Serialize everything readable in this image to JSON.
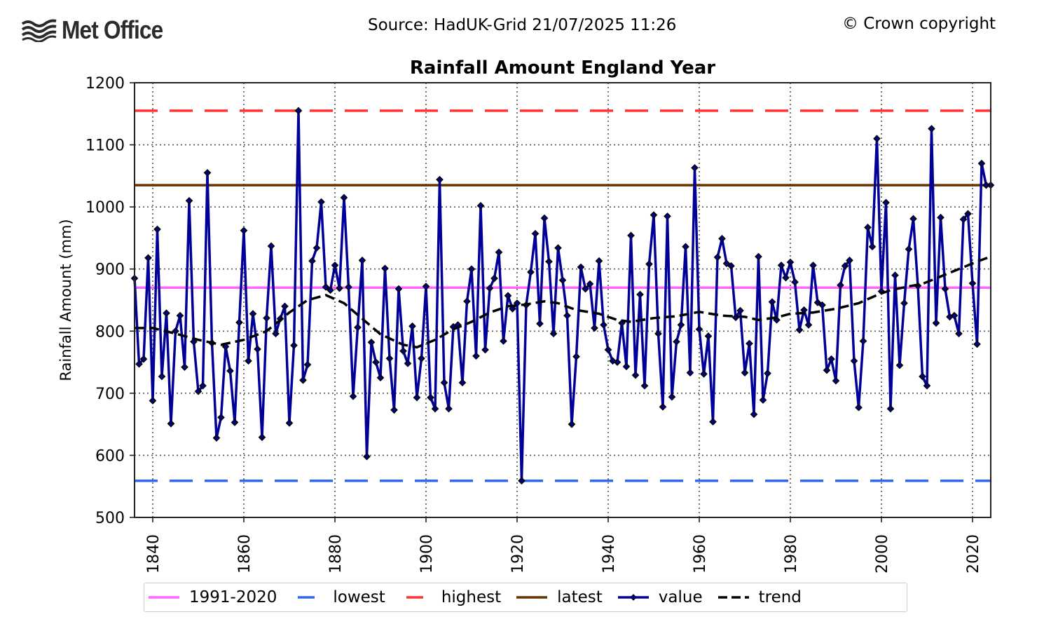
{
  "header": {
    "logo_text": "Met Office",
    "source": "Source: HadUK-Grid 21/07/2025 11:26",
    "copyright": "© Crown copyright"
  },
  "colors": {
    "baseline": "#ff66ff",
    "lowest": "#3366ee",
    "highest": "#ff3333",
    "latest": "#663300",
    "value": "#000099",
    "trend": "#000000",
    "grid": "#555555"
  },
  "chart_data": {
    "type": "line",
    "title": "Rainfall Amount England Year",
    "xlabel": "",
    "ylabel": "Rainfall Amount (mm)",
    "xlim": [
      1836,
      2024
    ],
    "ylim": [
      500,
      1200
    ],
    "x_ticks": [
      1840,
      1860,
      1880,
      1900,
      1920,
      1940,
      1960,
      1980,
      2000,
      2020
    ],
    "y_ticks": [
      500,
      600,
      700,
      800,
      900,
      1000,
      1100,
      1200
    ],
    "grid": true,
    "legend_position": "bottom",
    "reference_lines": [
      {
        "name": "1991-2020",
        "value": 870,
        "style": "solid"
      },
      {
        "name": "lowest",
        "value": 559,
        "style": "dashed"
      },
      {
        "name": "highest",
        "value": 1155,
        "style": "dashed"
      },
      {
        "name": "latest",
        "value": 1035,
        "style": "solid"
      }
    ],
    "series": [
      {
        "name": "value",
        "start_year": 1836,
        "values": [
          885,
          747,
          755,
          918,
          688,
          964,
          727,
          829,
          651,
          800,
          825,
          742,
          1010,
          783,
          703,
          712,
          1055,
          781,
          628,
          661,
          775,
          736,
          653,
          814,
          962,
          752,
          828,
          771,
          629,
          821,
          937,
          796,
          820,
          840,
          652,
          777,
          1155,
          721,
          746,
          913,
          934,
          1008,
          871,
          866,
          906,
          869,
          1015,
          871,
          695,
          806,
          914,
          598,
          782,
          750,
          725,
          901,
          756,
          673,
          868,
          768,
          748,
          808,
          693,
          756,
          872,
          693,
          675,
          1044,
          717,
          675,
          807,
          810,
          717,
          848,
          900,
          760,
          1002,
          770,
          869,
          885,
          927,
          784,
          857,
          836,
          845,
          559,
          842,
          895,
          957,
          812,
          982,
          912,
          796,
          934,
          882,
          825,
          650,
          759,
          903,
          868,
          876,
          805,
          913,
          810,
          770,
          752,
          750,
          813,
          743,
          954,
          729,
          859,
          712,
          908,
          987,
          796,
          678,
          985,
          694,
          783,
          810,
          936,
          733,
          1063,
          803,
          731,
          792,
          654,
          919,
          949,
          909,
          905,
          822,
          833,
          733,
          780,
          666,
          920,
          689,
          732,
          847,
          818,
          906,
          886,
          911,
          879,
          802,
          834,
          810,
          906,
          846,
          842,
          737,
          755,
          720,
          874,
          905,
          914,
          752,
          677,
          784,
          967,
          936,
          1110,
          864,
          1007,
          675,
          890,
          745,
          845,
          932,
          981,
          873,
          727,
          712,
          1126,
          813,
          983,
          868,
          823,
          825,
          796,
          980,
          989,
          877,
          779,
          1070,
          1035,
          1035
        ]
      },
      {
        "name": "trend",
        "points": [
          [
            1836,
            805
          ],
          [
            1840,
            805
          ],
          [
            1845,
            796
          ],
          [
            1850,
            786
          ],
          [
            1855,
            778
          ],
          [
            1860,
            786
          ],
          [
            1865,
            800
          ],
          [
            1870,
            830
          ],
          [
            1874,
            850
          ],
          [
            1878,
            858
          ],
          [
            1882,
            845
          ],
          [
            1886,
            820
          ],
          [
            1890,
            795
          ],
          [
            1895,
            778
          ],
          [
            1898,
            774
          ],
          [
            1902,
            786
          ],
          [
            1906,
            803
          ],
          [
            1910,
            815
          ],
          [
            1914,
            830
          ],
          [
            1918,
            840
          ],
          [
            1922,
            843
          ],
          [
            1926,
            848
          ],
          [
            1929,
            845
          ],
          [
            1933,
            834
          ],
          [
            1938,
            828
          ],
          [
            1942,
            818
          ],
          [
            1945,
            815
          ],
          [
            1950,
            821
          ],
          [
            1955,
            824
          ],
          [
            1960,
            831
          ],
          [
            1965,
            825
          ],
          [
            1970,
            823
          ],
          [
            1973,
            818
          ],
          [
            1977,
            822
          ],
          [
            1980,
            828
          ],
          [
            1985,
            830
          ],
          [
            1990,
            836
          ],
          [
            1995,
            845
          ],
          [
            1999,
            858
          ],
          [
            2002,
            866
          ],
          [
            2006,
            872
          ],
          [
            2009,
            876
          ],
          [
            2013,
            888
          ],
          [
            2017,
            900
          ],
          [
            2021,
            912
          ],
          [
            2024,
            920
          ]
        ]
      }
    ]
  },
  "legend": {
    "items": [
      {
        "label": "1991-2020",
        "key": "baseline"
      },
      {
        "label": "lowest",
        "key": "lowest"
      },
      {
        "label": "highest",
        "key": "highest"
      },
      {
        "label": "latest",
        "key": "latest"
      },
      {
        "label": "value",
        "key": "value"
      },
      {
        "label": "trend",
        "key": "trend"
      }
    ]
  }
}
